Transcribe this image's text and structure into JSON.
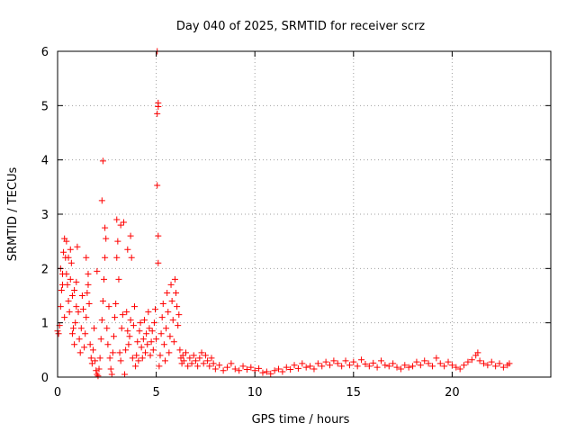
{
  "chart_data": {
    "type": "scatter",
    "title": "Day 040 of 2025, SRMTID for receiver scrz",
    "xlabel": "GPS time / hours",
    "ylabel": "SRMTID / TECUs",
    "xlim": [
      0,
      25
    ],
    "ylim": [
      0,
      6
    ],
    "xticks": [
      0,
      5,
      10,
      15,
      20
    ],
    "yticks": [
      0,
      1,
      2,
      3,
      4,
      5,
      6
    ],
    "xtick_labels": [
      "0",
      "5",
      "10",
      "15",
      "20"
    ],
    "ytick_labels": [
      "0",
      "1",
      "2",
      "3",
      "4",
      "5",
      "6"
    ],
    "grid": true,
    "marker": "+",
    "color": "#ff0000",
    "series": [
      {
        "name": "SRMTID",
        "points": [
          [
            0.0,
            0.85
          ],
          [
            0.05,
            0.8
          ],
          [
            0.1,
            0.95
          ],
          [
            0.15,
            1.3
          ],
          [
            0.2,
            1.6
          ],
          [
            0.25,
            1.9
          ],
          [
            0.3,
            2.3
          ],
          [
            0.35,
            2.55
          ],
          [
            0.4,
            2.2
          ],
          [
            0.45,
            1.9
          ],
          [
            0.5,
            1.7
          ],
          [
            0.55,
            1.4
          ],
          [
            0.6,
            1.2
          ],
          [
            0.65,
            2.35
          ],
          [
            0.7,
            2.1
          ],
          [
            0.75,
            1.5
          ],
          [
            0.8,
            0.9
          ],
          [
            0.85,
            0.6
          ],
          [
            0.9,
            1.0
          ],
          [
            0.95,
            1.3
          ],
          [
            0.15,
            2.0
          ],
          [
            0.25,
            1.7
          ],
          [
            0.35,
            1.1
          ],
          [
            0.45,
            2.5
          ],
          [
            0.55,
            2.2
          ],
          [
            0.65,
            1.8
          ],
          [
            0.75,
            0.8
          ],
          [
            0.85,
            1.6
          ],
          [
            0.95,
            1.75
          ],
          [
            1.0,
            2.4
          ],
          [
            1.05,
            1.2
          ],
          [
            1.1,
            0.7
          ],
          [
            1.15,
            0.45
          ],
          [
            1.2,
            0.9
          ],
          [
            1.25,
            1.5
          ],
          [
            1.3,
            1.25
          ],
          [
            1.35,
            0.55
          ],
          [
            1.4,
            0.8
          ],
          [
            1.45,
            1.1
          ],
          [
            1.5,
            1.55
          ],
          [
            1.55,
            1.9
          ],
          [
            1.6,
            1.35
          ],
          [
            1.65,
            0.6
          ],
          [
            1.7,
            0.35
          ],
          [
            1.75,
            0.25
          ],
          [
            1.8,
            0.5
          ],
          [
            1.85,
            0.9
          ],
          [
            1.9,
            0.3
          ],
          [
            1.95,
            0.12
          ],
          [
            2.0,
            0.05
          ],
          [
            2.05,
            0.02
          ],
          [
            2.1,
            0.15
          ],
          [
            2.15,
            0.35
          ],
          [
            2.2,
            0.7
          ],
          [
            2.25,
            1.05
          ],
          [
            2.3,
            1.4
          ],
          [
            2.35,
            1.8
          ],
          [
            2.4,
            2.2
          ],
          [
            2.45,
            2.55
          ],
          [
            2.5,
            0.9
          ],
          [
            2.55,
            0.6
          ],
          [
            2.6,
            1.3
          ],
          [
            2.65,
            0.35
          ],
          [
            2.7,
            0.15
          ],
          [
            2.75,
            0.05
          ],
          [
            2.8,
            0.45
          ],
          [
            2.85,
            0.75
          ],
          [
            2.9,
            1.1
          ],
          [
            2.95,
            1.35
          ],
          [
            3.0,
            2.9
          ],
          [
            3.05,
            2.5
          ],
          [
            3.1,
            1.8
          ],
          [
            3.15,
            0.45
          ],
          [
            3.2,
            0.3
          ],
          [
            3.25,
            0.9
          ],
          [
            3.3,
            1.15
          ],
          [
            3.35,
            2.85
          ],
          [
            3.4,
            0.05
          ],
          [
            3.45,
            0.5
          ],
          [
            3.5,
            1.2
          ],
          [
            3.55,
            0.85
          ],
          [
            3.6,
            0.6
          ],
          [
            3.65,
            0.75
          ],
          [
            3.7,
            1.05
          ],
          [
            3.75,
            2.2
          ],
          [
            3.8,
            0.35
          ],
          [
            3.85,
            0.95
          ],
          [
            3.9,
            1.3
          ],
          [
            3.95,
            0.2
          ],
          [
            4.0,
            0.4
          ],
          [
            4.05,
            0.65
          ],
          [
            4.1,
            0.3
          ],
          [
            4.15,
            0.85
          ],
          [
            4.2,
            1.0
          ],
          [
            4.25,
            0.55
          ],
          [
            4.3,
            0.35
          ],
          [
            4.35,
            0.7
          ],
          [
            4.4,
            1.05
          ],
          [
            4.45,
            0.45
          ],
          [
            4.5,
            0.8
          ],
          [
            4.55,
            0.6
          ],
          [
            4.6,
            1.2
          ],
          [
            4.65,
            0.9
          ],
          [
            4.7,
            0.4
          ],
          [
            4.75,
            0.65
          ],
          [
            4.8,
            0.85
          ],
          [
            4.85,
            0.5
          ],
          [
            4.9,
            1.0
          ],
          [
            4.95,
            1.25
          ],
          [
            5.0,
            0.7
          ],
          [
            2.3,
            3.98
          ],
          [
            2.25,
            3.25
          ],
          [
            2.4,
            2.75
          ],
          [
            3.0,
            2.2
          ],
          [
            3.2,
            2.8
          ],
          [
            3.55,
            2.35
          ],
          [
            3.7,
            2.6
          ],
          [
            1.45,
            2.2
          ],
          [
            1.55,
            1.7
          ],
          [
            2.0,
            1.95
          ],
          [
            5.05,
            6.0
          ],
          [
            5.1,
            5.05
          ],
          [
            5.05,
            4.85
          ],
          [
            5.1,
            4.98
          ],
          [
            5.05,
            3.53
          ],
          [
            5.1,
            2.6
          ],
          [
            5.1,
            2.1
          ],
          [
            5.15,
            0.2
          ],
          [
            5.2,
            0.4
          ],
          [
            5.25,
            0.8
          ],
          [
            5.3,
            1.1
          ],
          [
            5.35,
            1.35
          ],
          [
            5.4,
            0.6
          ],
          [
            5.45,
            0.3
          ],
          [
            5.5,
            0.9
          ],
          [
            5.55,
            1.55
          ],
          [
            5.6,
            1.2
          ],
          [
            5.65,
            0.45
          ],
          [
            5.7,
            0.75
          ],
          [
            5.75,
            1.7
          ],
          [
            5.8,
            1.4
          ],
          [
            5.85,
            1.05
          ],
          [
            5.9,
            0.65
          ],
          [
            5.95,
            1.8
          ],
          [
            6.0,
            1.55
          ],
          [
            6.05,
            1.3
          ],
          [
            6.1,
            0.95
          ],
          [
            6.15,
            1.15
          ],
          [
            6.2,
            0.5
          ],
          [
            6.25,
            0.35
          ],
          [
            6.3,
            0.25
          ],
          [
            6.35,
            0.4
          ],
          [
            6.4,
            0.3
          ],
          [
            6.5,
            0.45
          ],
          [
            6.6,
            0.2
          ],
          [
            6.7,
            0.35
          ],
          [
            6.8,
            0.25
          ],
          [
            6.9,
            0.4
          ],
          [
            7.0,
            0.3
          ],
          [
            7.1,
            0.2
          ],
          [
            7.2,
            0.35
          ],
          [
            7.3,
            0.45
          ],
          [
            7.4,
            0.25
          ],
          [
            7.5,
            0.4
          ],
          [
            7.6,
            0.3
          ],
          [
            7.7,
            0.2
          ],
          [
            7.8,
            0.35
          ],
          [
            7.9,
            0.25
          ],
          [
            8.0,
            0.15
          ],
          [
            8.2,
            0.22
          ],
          [
            8.4,
            0.12
          ],
          [
            8.6,
            0.18
          ],
          [
            8.8,
            0.25
          ],
          [
            9.0,
            0.15
          ],
          [
            9.2,
            0.12
          ],
          [
            9.4,
            0.2
          ],
          [
            9.6,
            0.14
          ],
          [
            9.8,
            0.18
          ],
          [
            10.0,
            0.12
          ],
          [
            10.2,
            0.16
          ],
          [
            10.4,
            0.08
          ],
          [
            10.6,
            0.1
          ],
          [
            10.8,
            0.06
          ],
          [
            11.0,
            0.12
          ],
          [
            11.2,
            0.15
          ],
          [
            11.4,
            0.1
          ],
          [
            11.6,
            0.18
          ],
          [
            11.8,
            0.14
          ],
          [
            12.0,
            0.22
          ],
          [
            12.2,
            0.16
          ],
          [
            12.4,
            0.25
          ],
          [
            12.6,
            0.18
          ],
          [
            12.8,
            0.2
          ],
          [
            13.0,
            0.15
          ],
          [
            13.2,
            0.25
          ],
          [
            13.4,
            0.2
          ],
          [
            13.6,
            0.28
          ],
          [
            13.8,
            0.22
          ],
          [
            14.0,
            0.3
          ],
          [
            14.2,
            0.25
          ],
          [
            14.4,
            0.2
          ],
          [
            14.6,
            0.3
          ],
          [
            14.8,
            0.22
          ],
          [
            15.0,
            0.28
          ],
          [
            15.2,
            0.2
          ],
          [
            15.4,
            0.32
          ],
          [
            15.6,
            0.24
          ],
          [
            15.8,
            0.2
          ],
          [
            16.0,
            0.26
          ],
          [
            16.2,
            0.18
          ],
          [
            16.4,
            0.3
          ],
          [
            16.6,
            0.22
          ],
          [
            16.8,
            0.2
          ],
          [
            17.0,
            0.25
          ],
          [
            17.2,
            0.18
          ],
          [
            17.4,
            0.15
          ],
          [
            17.6,
            0.22
          ],
          [
            17.8,
            0.18
          ],
          [
            18.0,
            0.2
          ],
          [
            18.2,
            0.28
          ],
          [
            18.4,
            0.22
          ],
          [
            18.6,
            0.3
          ],
          [
            18.8,
            0.25
          ],
          [
            19.0,
            0.2
          ],
          [
            19.2,
            0.35
          ],
          [
            19.4,
            0.25
          ],
          [
            19.6,
            0.2
          ],
          [
            19.8,
            0.28
          ],
          [
            20.0,
            0.22
          ],
          [
            20.2,
            0.18
          ],
          [
            20.4,
            0.15
          ],
          [
            20.6,
            0.22
          ],
          [
            20.8,
            0.28
          ],
          [
            21.0,
            0.32
          ],
          [
            21.2,
            0.4
          ],
          [
            21.3,
            0.45
          ],
          [
            21.4,
            0.3
          ],
          [
            21.6,
            0.25
          ],
          [
            21.8,
            0.22
          ],
          [
            22.0,
            0.28
          ],
          [
            22.2,
            0.2
          ],
          [
            22.4,
            0.25
          ],
          [
            22.6,
            0.18
          ],
          [
            22.8,
            0.22
          ],
          [
            22.9,
            0.25
          ]
        ]
      }
    ]
  }
}
